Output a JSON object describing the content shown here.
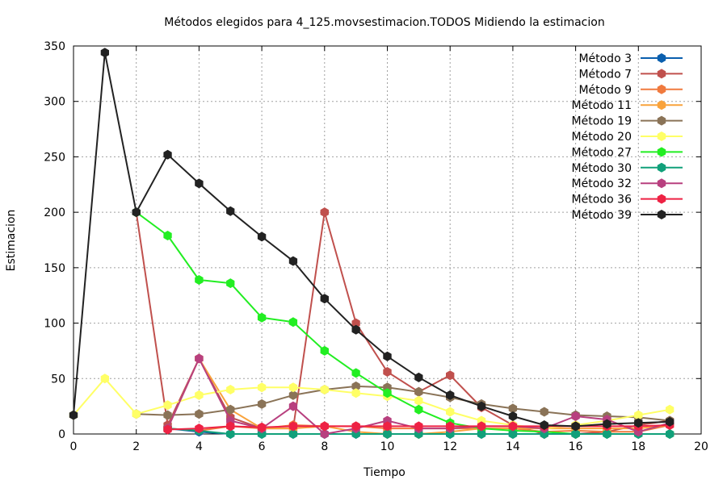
{
  "chart_data": {
    "type": "line",
    "title": "Métodos elegidos para 4_125.movsestimacion.TODOS Midiendo la estimacion",
    "xlabel": "Tiempo",
    "ylabel": "Estimacion",
    "xlim": [
      0,
      20
    ],
    "ylim": [
      0,
      350
    ],
    "x_ticks": [
      0,
      2,
      4,
      6,
      8,
      10,
      12,
      14,
      16,
      18,
      20
    ],
    "y_ticks": [
      0,
      50,
      100,
      150,
      200,
      250,
      300,
      350
    ],
    "grid": true,
    "legend_position": "top-right",
    "series": [
      {
        "name": "Método 3",
        "color": "#0a5fae",
        "points": [
          [
            3,
            5
          ],
          [
            4,
            2
          ],
          [
            5,
            0
          ],
          [
            6,
            0
          ],
          [
            7,
            0
          ],
          [
            8,
            0
          ],
          [
            9,
            0
          ],
          [
            10,
            0
          ],
          [
            11,
            0
          ],
          [
            12,
            0
          ],
          [
            13,
            0
          ],
          [
            14,
            0
          ],
          [
            15,
            0
          ],
          [
            16,
            0
          ],
          [
            17,
            0
          ],
          [
            18,
            0
          ],
          [
            19,
            0
          ]
        ]
      },
      {
        "name": "Método 7",
        "color": "#c0504d",
        "points": [
          [
            2,
            200
          ],
          [
            3,
            8
          ],
          [
            4,
            68
          ],
          [
            5,
            15
          ],
          [
            6,
            5
          ],
          [
            7,
            5
          ],
          [
            8,
            200
          ],
          [
            9,
            100
          ],
          [
            10,
            56
          ],
          [
            11,
            38
          ],
          [
            12,
            53
          ],
          [
            13,
            24
          ],
          [
            14,
            8
          ],
          [
            15,
            0
          ],
          [
            16,
            0
          ],
          [
            17,
            2
          ],
          [
            18,
            8
          ],
          [
            19,
            12
          ]
        ]
      },
      {
        "name": "Método 9",
        "color": "#f07a3e",
        "points": [
          [
            3,
            5
          ],
          [
            4,
            3
          ],
          [
            5,
            7
          ],
          [
            6,
            5
          ],
          [
            7,
            8
          ],
          [
            8,
            7
          ],
          [
            9,
            7
          ],
          [
            10,
            5
          ],
          [
            11,
            5
          ],
          [
            12,
            5
          ],
          [
            13,
            5
          ],
          [
            14,
            5
          ],
          [
            15,
            2
          ],
          [
            16,
            3
          ],
          [
            17,
            2
          ],
          [
            18,
            2
          ],
          [
            19,
            8
          ]
        ]
      },
      {
        "name": "Método 11",
        "color": "#f9a33c",
        "points": [
          [
            3,
            5
          ],
          [
            4,
            68
          ],
          [
            5,
            22
          ],
          [
            6,
            5
          ],
          [
            7,
            5
          ],
          [
            8,
            7
          ],
          [
            9,
            2
          ],
          [
            10,
            0
          ],
          [
            11,
            0
          ],
          [
            12,
            2
          ],
          [
            13,
            5
          ],
          [
            14,
            5
          ],
          [
            15,
            5
          ],
          [
            16,
            5
          ],
          [
            17,
            5
          ],
          [
            18,
            5
          ],
          [
            19,
            8
          ]
        ]
      },
      {
        "name": "Método 19",
        "color": "#8a7357",
        "points": [
          [
            2,
            18
          ],
          [
            3,
            17
          ],
          [
            4,
            18
          ],
          [
            5,
            22
          ],
          [
            6,
            27
          ],
          [
            7,
            35
          ],
          [
            8,
            40
          ],
          [
            9,
            43
          ],
          [
            10,
            42
          ],
          [
            11,
            38
          ],
          [
            12,
            33
          ],
          [
            13,
            27
          ],
          [
            14,
            23
          ],
          [
            15,
            20
          ],
          [
            16,
            17
          ],
          [
            17,
            16
          ],
          [
            18,
            15
          ],
          [
            19,
            12
          ]
        ]
      },
      {
        "name": "Método 20",
        "color": "#ffff66",
        "points": [
          [
            0,
            17
          ],
          [
            1,
            50
          ],
          [
            2,
            18
          ],
          [
            3,
            26
          ],
          [
            4,
            35
          ],
          [
            5,
            40
          ],
          [
            6,
            42
          ],
          [
            7,
            42
          ],
          [
            8,
            40
          ],
          [
            9,
            37
          ],
          [
            10,
            34
          ],
          [
            11,
            30
          ],
          [
            12,
            20
          ],
          [
            13,
            12
          ],
          [
            14,
            8
          ],
          [
            15,
            5
          ],
          [
            16,
            8
          ],
          [
            17,
            12
          ],
          [
            18,
            17
          ],
          [
            19,
            22
          ]
        ]
      },
      {
        "name": "Método 27",
        "color": "#22ee22",
        "points": [
          [
            2,
            200
          ],
          [
            3,
            179
          ],
          [
            4,
            139
          ],
          [
            5,
            136
          ],
          [
            6,
            105
          ],
          [
            7,
            101
          ],
          [
            8,
            75
          ],
          [
            9,
            55
          ],
          [
            10,
            37
          ],
          [
            11,
            22
          ],
          [
            12,
            10
          ],
          [
            13,
            5
          ],
          [
            14,
            3
          ],
          [
            15,
            2
          ],
          [
            16,
            0
          ],
          [
            17,
            0
          ],
          [
            18,
            0
          ],
          [
            19,
            0
          ]
        ]
      },
      {
        "name": "Método 30",
        "color": "#11a07a",
        "points": [
          [
            3,
            5
          ],
          [
            4,
            3
          ],
          [
            5,
            0
          ],
          [
            6,
            0
          ],
          [
            7,
            0
          ],
          [
            8,
            0
          ],
          [
            9,
            0
          ],
          [
            10,
            0
          ],
          [
            11,
            0
          ],
          [
            12,
            0
          ],
          [
            13,
            0
          ],
          [
            14,
            0
          ],
          [
            15,
            0
          ],
          [
            16,
            0
          ],
          [
            17,
            0
          ],
          [
            18,
            0
          ],
          [
            19,
            0
          ]
        ]
      },
      {
        "name": "Método 32",
        "color": "#b8407f",
        "points": [
          [
            3,
            5
          ],
          [
            4,
            68
          ],
          [
            5,
            12
          ],
          [
            6,
            5
          ],
          [
            7,
            25
          ],
          [
            8,
            0
          ],
          [
            9,
            5
          ],
          [
            10,
            12
          ],
          [
            11,
            5
          ],
          [
            12,
            5
          ],
          [
            13,
            7
          ],
          [
            14,
            7
          ],
          [
            15,
            5
          ],
          [
            16,
            16
          ],
          [
            17,
            13
          ],
          [
            18,
            2
          ],
          [
            19,
            10
          ]
        ]
      },
      {
        "name": "Método 36",
        "color": "#ee2244",
        "points": [
          [
            3,
            4
          ],
          [
            4,
            5
          ],
          [
            5,
            7
          ],
          [
            6,
            6
          ],
          [
            7,
            7
          ],
          [
            8,
            7
          ],
          [
            9,
            7
          ],
          [
            10,
            7
          ],
          [
            11,
            7
          ],
          [
            12,
            7
          ],
          [
            13,
            7
          ],
          [
            14,
            7
          ],
          [
            15,
            7
          ],
          [
            16,
            7
          ],
          [
            17,
            7
          ],
          [
            18,
            7
          ],
          [
            19,
            8
          ]
        ]
      },
      {
        "name": "Método 39",
        "color": "#222222",
        "points": [
          [
            0,
            17
          ],
          [
            1,
            344
          ],
          [
            2,
            200
          ],
          [
            3,
            252
          ],
          [
            4,
            226
          ],
          [
            5,
            201
          ],
          [
            6,
            178
          ],
          [
            7,
            156
          ],
          [
            8,
            122
          ],
          [
            9,
            94
          ],
          [
            10,
            70
          ],
          [
            11,
            51
          ],
          [
            12,
            35
          ],
          [
            13,
            25
          ],
          [
            14,
            16
          ],
          [
            15,
            8
          ],
          [
            16,
            7
          ],
          [
            17,
            9
          ],
          [
            18,
            10
          ],
          [
            19,
            11
          ]
        ]
      }
    ]
  }
}
